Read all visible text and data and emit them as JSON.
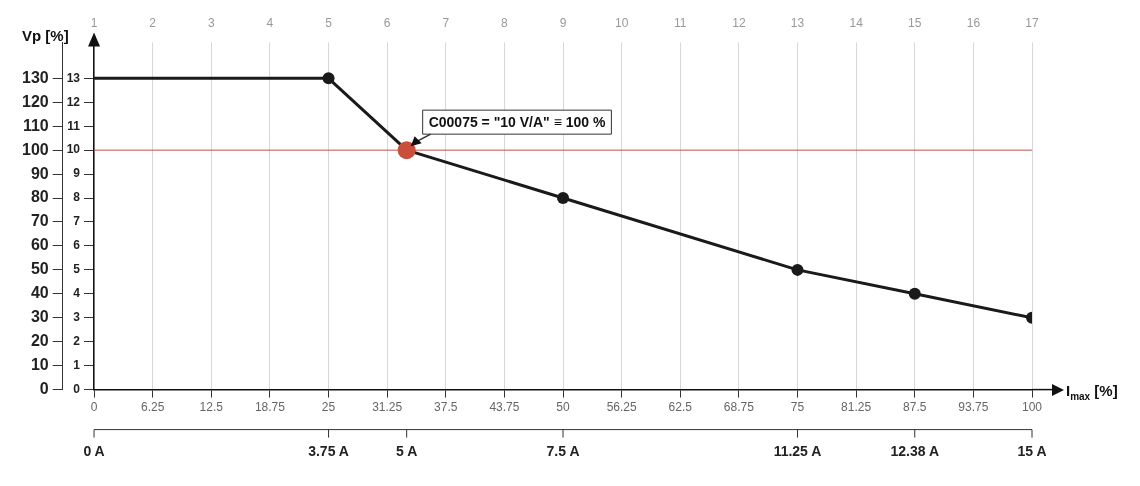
{
  "chart_data": {
    "type": "line",
    "xlabel": "I$_{max}$ [%]",
    "ylabel": "Vp [%]",
    "x": [
      0,
      25,
      33.33,
      50,
      75,
      87.5,
      100
    ],
    "series": [
      {
        "color": "#1a1a1a",
        "values": [
          130,
          130,
          100,
          80,
          50,
          40,
          30
        ],
        "colors": [
          null,
          "#1a1a1a",
          "#c8503a",
          "#1a1a1a",
          "#1a1a1a",
          "#1a1a1a",
          "#1a1a1a"
        ]
      }
    ],
    "xlim": [
      0,
      100
    ],
    "xticks": [
      0,
      6.25,
      12.5,
      18.75,
      25,
      31.25,
      37.5,
      43.75,
      50,
      56.25,
      62.5,
      68.75,
      75,
      81.25,
      87.5,
      93.75,
      100
    ],
    "x2lim": [
      1,
      17
    ],
    "x2ticks": [
      1,
      2,
      3,
      4,
      5,
      6,
      7,
      8,
      9,
      10,
      11,
      12,
      13,
      14,
      15,
      16,
      17
    ],
    "ylim": [
      0,
      145
    ],
    "yticks": [
      0,
      10,
      20,
      30,
      40,
      50,
      60,
      70,
      80,
      90,
      100,
      110,
      120,
      130
    ],
    "y2lim": [
      0,
      14.5
    ],
    "y2ticks": [
      0,
      1,
      2,
      3,
      4,
      5,
      6,
      7,
      8,
      9,
      10,
      11,
      12,
      13
    ],
    "ref_lines": [
      {
        "axis": "y",
        "value": 100,
        "color": "#c0504d"
      }
    ],
    "annotations": [
      {
        "text": "C00075 = \"10 V/A\" ≡ 100 %",
        "x": 33.33,
        "y": 100
      },
      {
        "text": "0 A",
        "x": 0
      },
      {
        "text": "3.75 A",
        "x": 25
      },
      {
        "text": "5 A",
        "x": 33.33
      },
      {
        "text": "7.5 A",
        "x": 50
      },
      {
        "text": "11.25 A",
        "x": 75
      },
      {
        "text": "12.38 A",
        "x": 87.5
      },
      {
        "text": "15 A",
        "x": 100
      }
    ],
    "grid": "x",
    "marker": "circle",
    "legend": false
  }
}
